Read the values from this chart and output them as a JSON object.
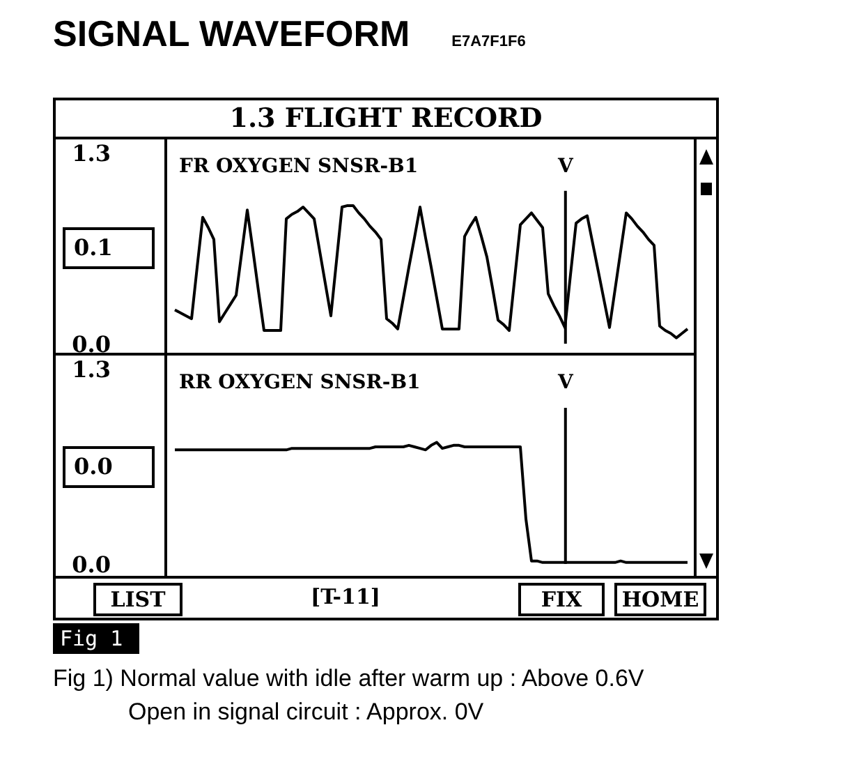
{
  "chart_data": [
    {
      "type": "line",
      "title": "FR OXYGEN SNSR-B1",
      "ylabel": "V",
      "categories": [
        null,
        null,
        null,
        null,
        null,
        null,
        null,
        null,
        null,
        null,
        null,
        null,
        null,
        null,
        null,
        null,
        null,
        null,
        null,
        null,
        null,
        null,
        null,
        null,
        null,
        null,
        null,
        null,
        null,
        null,
        null,
        null,
        null,
        null,
        null,
        null,
        null,
        null,
        null,
        null,
        null,
        null,
        null,
        null,
        null,
        null,
        null,
        null,
        null,
        null,
        null,
        null,
        null,
        null,
        null,
        null,
        null,
        null,
        null,
        null,
        null,
        null,
        null,
        null,
        null,
        null,
        null,
        null,
        null,
        null,
        null,
        null,
        null,
        null,
        null,
        null,
        null,
        null,
        null,
        null,
        null,
        null,
        null,
        null,
        null,
        null,
        null,
        null,
        null,
        null,
        null,
        null,
        null
      ],
      "series": [
        {
          "color": "#000000",
          "values": [
            0.23,
            0.21,
            0.19,
            0.17,
            0.52,
            0.86,
            0.79,
            0.71,
            0.15,
            0.21,
            0.27,
            0.33,
            0.62,
            0.91,
            0.64,
            0.36,
            0.09,
            0.09,
            0.09,
            0.09,
            0.85,
            0.88,
            0.9,
            0.93,
            0.89,
            0.85,
            0.63,
            0.41,
            0.19,
            0.56,
            0.93,
            0.94,
            0.94,
            0.89,
            0.85,
            0.8,
            0.76,
            0.71,
            0.17,
            0.14,
            0.1,
            0.31,
            0.52,
            0.72,
            0.93,
            0.72,
            0.52,
            0.31,
            0.1,
            0.1,
            0.1,
            0.1,
            0.73,
            0.8,
            0.86,
            0.73,
            0.59,
            0.38,
            0.16,
            0.13,
            0.09,
            0.45,
            0.81,
            0.85,
            0.89,
            0.84,
            0.79,
            0.34,
            0.26,
            0.19,
            0.11,
            0.47,
            0.82,
            0.85,
            0.87,
            0.68,
            0.49,
            0.3,
            0.11,
            0.37,
            0.63,
            0.89,
            0.85,
            0.8,
            0.76,
            0.71,
            0.67,
            0.12,
            0.09,
            0.07,
            0.04,
            0.07,
            0.1
          ]
        }
      ],
      "ylim": [
        0,
        1.3
      ],
      "yticks": [
        {
          "value": 0,
          "label": "0.0"
        },
        1.3
      ],
      "tick_labels": "y",
      "grid": false,
      "annotations": [
        "SIGNAL WAVEFORM",
        "E7A7F1F6",
        "1.3 FLIGHT RECORD",
        "0.1"
      ]
    },
    {
      "type": "line",
      "title": "RR OXYGEN SNSR-B1",
      "ylabel": "V",
      "categories": [
        null,
        null,
        null,
        null,
        null,
        null,
        null,
        null,
        null,
        null,
        null,
        null,
        null,
        null,
        null,
        null,
        null,
        null,
        null,
        null,
        null,
        null,
        null,
        null,
        null,
        null,
        null,
        null,
        null,
        null,
        null,
        null,
        null,
        null,
        null,
        null,
        null,
        null,
        null,
        null,
        null,
        null,
        null,
        null,
        null,
        null,
        null,
        null,
        null,
        null,
        null,
        null,
        null,
        null,
        null,
        null,
        null,
        null,
        null,
        null,
        null,
        null,
        null,
        null,
        null,
        null,
        null,
        null,
        null,
        null,
        null,
        null,
        null,
        null,
        null,
        null,
        null,
        null,
        null,
        null,
        null,
        null,
        null,
        null,
        null,
        null,
        null,
        null,
        null,
        null,
        null,
        null,
        null
      ],
      "series": [
        {
          "color": "#000000",
          "values": [
            0.76,
            0.76,
            0.76,
            0.76,
            0.76,
            0.76,
            0.76,
            0.76,
            0.76,
            0.76,
            0.76,
            0.76,
            0.76,
            0.76,
            0.76,
            0.76,
            0.76,
            0.76,
            0.76,
            0.76,
            0.76,
            0.77,
            0.77,
            0.77,
            0.77,
            0.77,
            0.77,
            0.77,
            0.77,
            0.77,
            0.77,
            0.77,
            0.77,
            0.77,
            0.77,
            0.77,
            0.78,
            0.78,
            0.78,
            0.78,
            0.78,
            0.78,
            0.79,
            0.78,
            0.77,
            0.76,
            0.79,
            0.81,
            0.77,
            0.78,
            0.79,
            0.79,
            0.78,
            0.78,
            0.78,
            0.78,
            0.78,
            0.78,
            0.78,
            0.78,
            0.78,
            0.78,
            0.78,
            0.3,
            0.02,
            0.02,
            0.01,
            0.01,
            0.01,
            0.01,
            0.01,
            0.01,
            0.01,
            0.01,
            0.01,
            0.01,
            0.01,
            0.01,
            0.01,
            0.01,
            0.02,
            0.01,
            0.01,
            0.01,
            0.01,
            0.01,
            0.01,
            0.01,
            0.01,
            0.01,
            0.01,
            0.01,
            0.01
          ]
        }
      ],
      "ylim": [
        0,
        1.3
      ],
      "yticks": [
        {
          "value": 0,
          "label": "0.0"
        },
        1.3
      ],
      "tick_labels": "y",
      "grid": false,
      "annotations": [
        "0.0",
        "LIST",
        "[T-11]",
        "FIX",
        "HOME",
        "Fig 1",
        "Fig 1) Normal value with idle after warm up : Above 0.6V",
        "Open in signal circuit : Approx. 0V"
      ]
    }
  ]
}
